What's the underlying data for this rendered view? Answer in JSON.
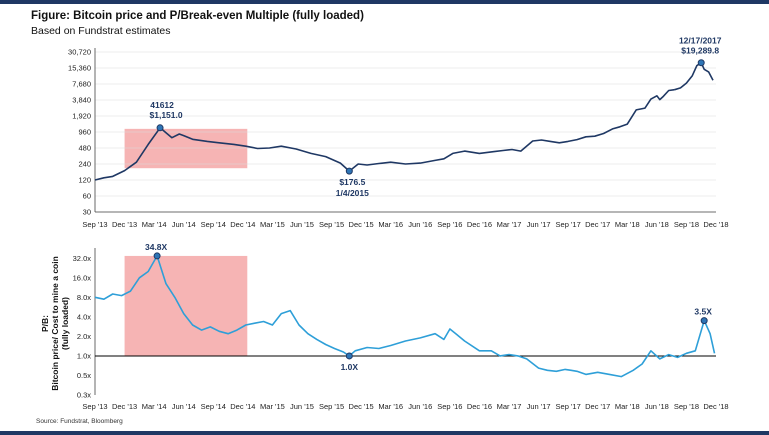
{
  "figure": {
    "title": "Figure: Bitcoin price and P/Break-even Multiple (fully loaded)",
    "subtitle": "Based on Fundstrat estimates",
    "source": "Source: Fundstrat, Bloomberg"
  },
  "chart_data": [
    {
      "type": "line",
      "name": "Bitcoin price",
      "scale": "log2",
      "color": "#1f3864",
      "y_ticks": [
        "30,720",
        "15,360",
        "7,680",
        "3,840",
        "1,920",
        "960",
        "480",
        "240",
        "120",
        "60",
        "30"
      ],
      "y_tick_values": [
        30720,
        15360,
        7680,
        3840,
        1920,
        960,
        480,
        240,
        120,
        60,
        30
      ],
      "ylim": [
        30,
        30720
      ],
      "x_labels": [
        "Sep '13",
        "Dec '13",
        "Mar '14",
        "Jun '14",
        "Sep '14",
        "Dec '14",
        "Mar '15",
        "Jun '15",
        "Sep '15",
        "Dec '15",
        "Mar '16",
        "Jun '16",
        "Sep '16",
        "Dec '16",
        "Mar '17",
        "Jun '17",
        "Sep '17",
        "Dec '17",
        "Mar '18",
        "Jun '18",
        "Sep '18",
        "Dec '18"
      ],
      "shaded_region": {
        "start": "Dec '13",
        "end": "Jan '15",
        "y_low": 200,
        "y_high": 1100,
        "color": "#f4a7a7"
      },
      "series": [
        {
          "name": "Bitcoin price (USD)",
          "x": [
            0,
            0.3,
            0.6,
            1.0,
            1.4,
            1.8,
            2.2,
            2.6,
            2.85,
            3.0,
            3.3,
            3.8,
            4.2,
            4.7,
            5.1,
            5.5,
            5.9,
            6.3,
            6.8,
            7.3,
            7.8,
            8.3,
            8.6,
            8.9,
            9.2,
            9.6,
            10.0,
            10.5,
            11.0,
            11.5,
            11.8,
            12.1,
            12.5,
            13.0,
            13.5,
            13.8,
            14.1,
            14.4,
            14.8,
            15.1,
            15.4,
            15.7,
            16.0,
            16.3,
            16.6,
            16.9,
            17.2,
            17.5,
            17.75,
            18.0,
            18.3,
            18.6,
            18.8,
            19.0,
            19.1,
            19.2,
            19.4,
            19.6
          ],
          "values": [
            120,
            132,
            140,
            180,
            260,
            560,
            1151,
            750,
            880,
            820,
            700,
            640,
            600,
            560,
            520,
            470,
            480,
            520,
            460,
            380,
            330,
            250,
            176.5,
            240,
            230,
            245,
            260,
            240,
            250,
            280,
            300,
            380,
            420,
            380,
            410,
            430,
            450,
            420,
            650,
            680,
            640,
            600,
            640,
            690,
            780,
            800,
            900,
            1100,
            1200,
            1350,
            2500,
            2700,
            4000,
            4600,
            3900,
            4400,
            5800,
            6000
          ]
        },
        {
          "name": "Bitcoin price (USD) late",
          "x": [
            19.6,
            19.8,
            20.0,
            20.2,
            20.35,
            20.5,
            20.6,
            20.75,
            20.9
          ],
          "values": [
            6000,
            6500,
            8000,
            11000,
            17000,
            19289.8,
            14500,
            13000,
            9000
          ]
        }
      ],
      "annotations": [
        {
          "label": "41612",
          "value_label": "$1,151.0",
          "x": 2.2,
          "y": 1151
        },
        {
          "label": "$176.5",
          "value_label": "1/4/2015",
          "x": 8.6,
          "y": 176.5
        },
        {
          "label": "12/17/2017",
          "value_label": "$19,289.8",
          "x": 20.5,
          "y": 19289.8
        }
      ]
    },
    {
      "type": "line",
      "name": "P/Break-even multiple",
      "scale": "log2",
      "color": "#2e9fd8",
      "ylabel": [
        "P/B:",
        "Bitcoin price/ Cost to mine a coin",
        "(fully loaded)"
      ],
      "y_ticks": [
        "32.0x",
        "16.0x",
        "8.0x",
        "4.0x",
        "2.0x",
        "1.0x",
        "0.5x",
        "0.3x"
      ],
      "y_tick_values": [
        32,
        16,
        8,
        4,
        2,
        1,
        0.5,
        0.25
      ],
      "ylim": [
        0.25,
        40
      ],
      "reference_line": 1.0,
      "x_labels": [
        "Sep '13",
        "Dec '13",
        "Mar '14",
        "Jun '14",
        "Sep '14",
        "Dec '14",
        "Mar '15",
        "Jun '15",
        "Sep '15",
        "Dec '15",
        "Mar '16",
        "Jun '16",
        "Sep '16",
        "Dec '16",
        "Mar '17",
        "Jun '17",
        "Sep '17",
        "Dec '17",
        "Mar '18",
        "Jun '18",
        "Sep '18",
        "Dec '18"
      ],
      "shaded_region": {
        "start": "Dec '13",
        "end": "Jan '15",
        "y_low": 1.0,
        "y_high": 34.8,
        "color": "#f4a7a7"
      },
      "series": [
        {
          "name": "P/B multiple",
          "x": [
            0,
            0.3,
            0.6,
            0.9,
            1.2,
            1.5,
            1.8,
            2.1,
            2.4,
            2.7,
            3.0,
            3.3,
            3.6,
            3.9,
            4.2,
            4.5,
            4.8,
            5.1,
            5.4,
            5.7,
            6.0,
            6.3,
            6.6,
            6.9,
            7.2,
            7.5,
            7.8,
            8.1,
            8.4,
            8.6,
            8.8,
            9.2,
            9.6,
            10.0,
            10.5,
            11.0,
            11.5,
            11.8,
            12.0,
            12.2,
            12.5,
            13.0,
            13.4,
            13.7,
            14.0,
            14.3,
            14.6,
            15.0,
            15.3,
            15.6,
            15.9,
            16.1,
            16.3,
            16.6,
            17.0,
            17.4,
            17.8,
            18.2,
            18.5,
            18.8,
            19.1,
            19.4,
            19.7,
            20.0,
            20.3,
            20.6,
            20.8,
            20.95
          ],
          "values": [
            8.0,
            7.5,
            9.0,
            8.5,
            10.0,
            16.0,
            20.0,
            34.8,
            13.0,
            8.0,
            4.5,
            3.0,
            2.5,
            2.8,
            2.4,
            2.2,
            2.5,
            3.0,
            3.2,
            3.4,
            3.0,
            4.5,
            5.0,
            3.0,
            2.2,
            1.8,
            1.5,
            1.3,
            1.15,
            1.0,
            1.2,
            1.35,
            1.3,
            1.45,
            1.7,
            1.9,
            2.2,
            1.8,
            2.6,
            2.2,
            1.7,
            1.2,
            1.2,
            1.0,
            1.05,
            1.0,
            0.9,
            0.65,
            0.6,
            0.58,
            0.62,
            0.6,
            0.58,
            0.52,
            0.56,
            0.52,
            0.48,
            0.6,
            0.75,
            1.2,
            0.9,
            1.05,
            0.95,
            1.1,
            1.2,
            3.5,
            2.2,
            1.1
          ]
        }
      ],
      "annotations": [
        {
          "label": "34.8X",
          "x": 2.1,
          "y": 34.8
        },
        {
          "label": "1.0X",
          "x": 8.6,
          "y": 1.0
        },
        {
          "label": "3.5X",
          "x": 20.6,
          "y": 3.5
        }
      ]
    }
  ]
}
